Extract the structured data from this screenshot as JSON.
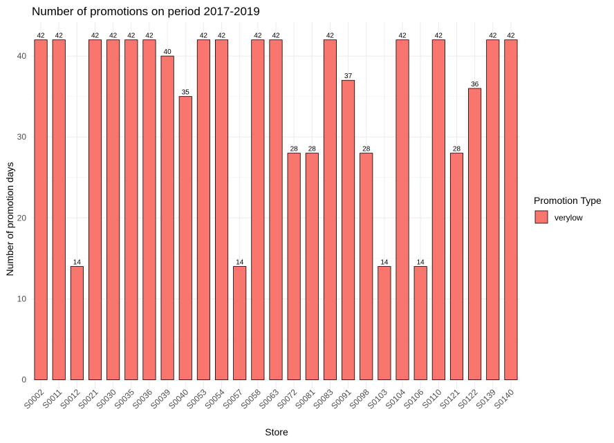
{
  "chart_data": {
    "type": "bar",
    "title": "Number of promotions on period 2017-2019",
    "xlabel": "Store",
    "ylabel": "Number of promotion days",
    "categories": [
      "S0002",
      "S0011",
      "S0012",
      "S0021",
      "S0030",
      "S0035",
      "S0036",
      "S0039",
      "S0040",
      "S0053",
      "S0054",
      "S0057",
      "S0058",
      "S0063",
      "S0072",
      "S0081",
      "S0083",
      "S0091",
      "S0098",
      "S0103",
      "S0104",
      "S0106",
      "S0110",
      "S0121",
      "S0122",
      "S0139",
      "S0140"
    ],
    "series": [
      {
        "name": "verylow",
        "color": "#F8766D",
        "values": [
          42,
          42,
          14,
          42,
          42,
          42,
          42,
          40,
          35,
          42,
          42,
          14,
          42,
          42,
          28,
          28,
          42,
          37,
          28,
          14,
          42,
          14,
          42,
          28,
          36,
          42,
          42
        ]
      }
    ],
    "yticks": [
      0,
      10,
      20,
      30,
      40
    ],
    "ylim": [
      0,
      44
    ],
    "grid": true,
    "legend": {
      "title": "Promotion Type",
      "placement": "right"
    }
  }
}
